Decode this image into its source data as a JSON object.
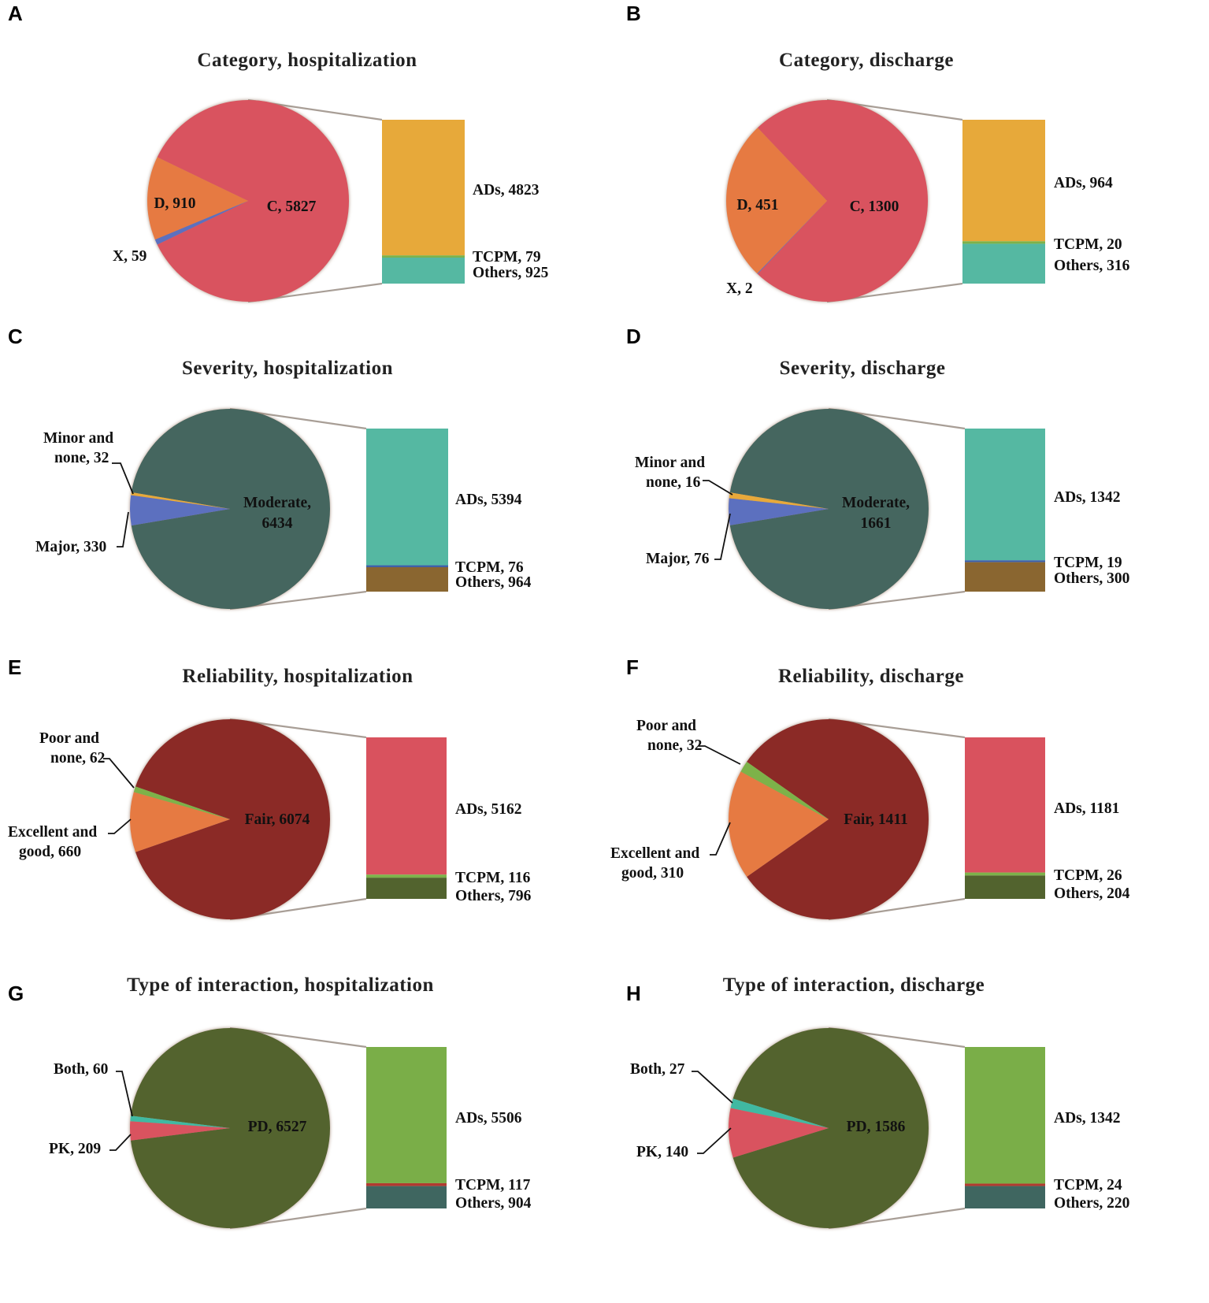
{
  "chart_data": [
    {
      "type": "pie",
      "panel": "A",
      "title": "Category, hospitalization",
      "slices": [
        {
          "label": "C",
          "value": 5827,
          "color": "#D9525E"
        },
        {
          "label": "X",
          "value": 59,
          "color": "#5B6FBF"
        },
        {
          "label": "D",
          "value": 910,
          "color": "#E67A42"
        }
      ],
      "breakdown": [
        {
          "label": "ADs",
          "value": 4823,
          "color": "#E7A93A"
        },
        {
          "label": "TCPM",
          "value": 79,
          "color": "#7DB24A"
        },
        {
          "label": "Others",
          "value": 925,
          "color": "#55B8A2"
        }
      ]
    },
    {
      "type": "pie",
      "panel": "B",
      "title": "Category, discharge",
      "slices": [
        {
          "label": "C",
          "value": 1300,
          "color": "#D9525E"
        },
        {
          "label": "X",
          "value": 2,
          "color": "#5B6FBF"
        },
        {
          "label": "D",
          "value": 451,
          "color": "#E67A42"
        }
      ],
      "breakdown": [
        {
          "label": "ADs",
          "value": 964,
          "color": "#E7A93A"
        },
        {
          "label": "TCPM",
          "value": 20,
          "color": "#7DB24A"
        },
        {
          "label": "Others",
          "value": 316,
          "color": "#55B8A2"
        }
      ]
    },
    {
      "type": "pie",
      "panel": "C",
      "title": "Severity, hospitalization",
      "slices": [
        {
          "label": "Moderate",
          "value": 6434,
          "color": "#44665F"
        },
        {
          "label": "Major",
          "value": 330,
          "color": "#5B6FBF"
        },
        {
          "label": "Minor and none",
          "value": 32,
          "color": "#E7A93A"
        }
      ],
      "breakdown": [
        {
          "label": "ADs",
          "value": 5394,
          "color": "#55B8A2"
        },
        {
          "label": "TCPM",
          "value": 76,
          "color": "#3E5FA8"
        },
        {
          "label": "Others",
          "value": 964,
          "color": "#8A6630"
        }
      ]
    },
    {
      "type": "pie",
      "panel": "D",
      "title": "Severity, discharge",
      "slices": [
        {
          "label": "Moderate",
          "value": 1661,
          "color": "#44665F"
        },
        {
          "label": "Major",
          "value": 76,
          "color": "#5B6FBF"
        },
        {
          "label": "Minor and none",
          "value": 16,
          "color": "#E7A93A"
        }
      ],
      "breakdown": [
        {
          "label": "ADs",
          "value": 1342,
          "color": "#55B8A2"
        },
        {
          "label": "TCPM",
          "value": 19,
          "color": "#3E5FA8"
        },
        {
          "label": "Others",
          "value": 300,
          "color": "#8A6630"
        }
      ]
    },
    {
      "type": "pie",
      "panel": "E",
      "title": "Reliability, hospitalization",
      "slices": [
        {
          "label": "Fair",
          "value": 6074,
          "color": "#8B2B28"
        },
        {
          "label": "Excellent and good",
          "value": 660,
          "color": "#E67A42"
        },
        {
          "label": "Poor and none",
          "value": 62,
          "color": "#7DB24A"
        }
      ],
      "breakdown": [
        {
          "label": "ADs",
          "value": 5162,
          "color": "#D9525E"
        },
        {
          "label": "TCPM",
          "value": 116,
          "color": "#7DB24A"
        },
        {
          "label": "Others",
          "value": 796,
          "color": "#52632E"
        }
      ]
    },
    {
      "type": "pie",
      "panel": "F",
      "title": "Reliability, discharge",
      "slices": [
        {
          "label": "Fair",
          "value": 1411,
          "color": "#8B2B28"
        },
        {
          "label": "Excellent and good",
          "value": 310,
          "color": "#E67A42"
        },
        {
          "label": "Poor and none",
          "value": 32,
          "color": "#7DB24A"
        }
      ],
      "breakdown": [
        {
          "label": "ADs",
          "value": 1181,
          "color": "#D9525E"
        },
        {
          "label": "TCPM",
          "value": 26,
          "color": "#7DB24A"
        },
        {
          "label": "Others",
          "value": 204,
          "color": "#52632E"
        }
      ]
    },
    {
      "type": "pie",
      "panel": "G",
      "title": "Type of interaction, hospitalization",
      "slices": [
        {
          "label": "PD",
          "value": 6527,
          "color": "#52632E"
        },
        {
          "label": "PK",
          "value": 209,
          "color": "#D9525E"
        },
        {
          "label": "Both",
          "value": 60,
          "color": "#3FB9A2"
        }
      ],
      "breakdown": [
        {
          "label": "ADs",
          "value": 5506,
          "color": "#7AAE48"
        },
        {
          "label": "TCPM",
          "value": 117,
          "color": "#B23A30"
        },
        {
          "label": "Others",
          "value": 904,
          "color": "#3F6660"
        }
      ]
    },
    {
      "type": "pie",
      "panel": "H",
      "title": "Type of interaction, discharge",
      "slices": [
        {
          "label": "PD",
          "value": 1586,
          "color": "#52632E"
        },
        {
          "label": "PK",
          "value": 140,
          "color": "#D9525E"
        },
        {
          "label": "Both",
          "value": 27,
          "color": "#3FB9A2"
        }
      ],
      "breakdown": [
        {
          "label": "ADs",
          "value": 1342,
          "color": "#7AAE48"
        },
        {
          "label": "TCPM",
          "value": 24,
          "color": "#B23A30"
        },
        {
          "label": "Others",
          "value": 220,
          "color": "#3F6660"
        }
      ]
    }
  ]
}
